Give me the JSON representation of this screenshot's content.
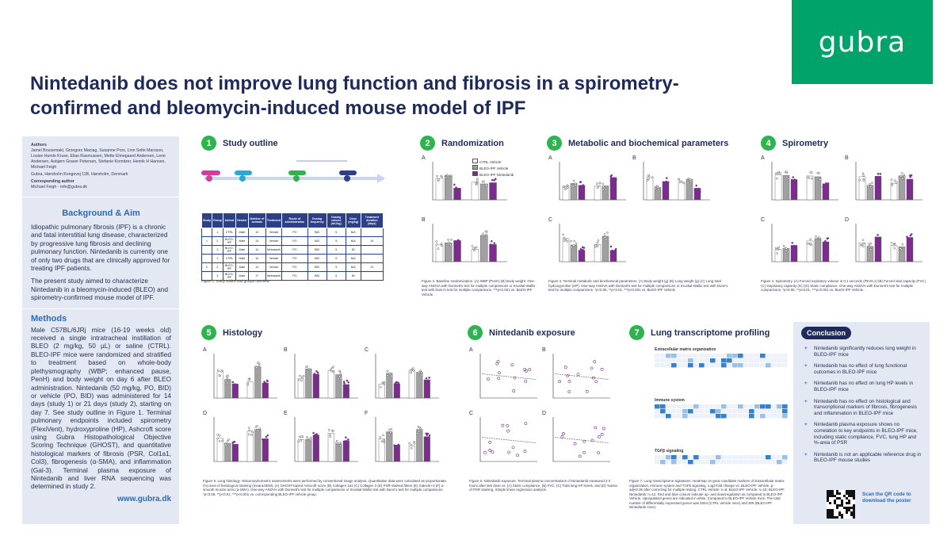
{
  "brand": {
    "logo_text": "gubra",
    "color": "#00a46a"
  },
  "title": {
    "line1": "Nintedanib does not improve lung function and fibrosis in a spirometry-",
    "line2": "confirmed and bleomycin-induced mouse model of IPF"
  },
  "sidebar": {
    "authors_heading": "Authors",
    "authors": "Jamel Bousemaki, Grzegorz Maciag, Susanne Pors, Linn Selte Marsson, Louise Humle Kruse, Elias Rasmussen, Mette Elmegaard Andersen, Lene Andersen, Asbjørn Graver Petersen, Stefanie Kornitzer, Henrik H Hansen, Michael Feigh",
    "address": "Gubra, Hørsholm Kongevej 11B, Hørsholm, Denmark",
    "corresponding_heading": "Corresponding author",
    "corresponding": "Michael Feigh - mfe@gubra.dk",
    "background_heading": "Background & Aim",
    "background_p1": "Idiopathic pulmonary fibrosis (IPF) is a chronic and fatal interstitial lung disease, characterized by progressive lung fibrosis and declining pulmonary function. Nintedanib is currently one of only two drugs that are clinically approved for treating IPF patients.",
    "background_p2": "The present study aimed to characterize Nintedanib in a bleomycin-induced (BLEO) and spirometry-confirmed mouse model of IPF.",
    "methods_heading": "Methods",
    "methods": "Male C57BL/6JRj mice (16-19 weeks old) received a single intratracheal instillation of BLEO (2 mg/kg, 50 µL) or saline (CTRL). BLEO-IPF mice were randomized and stratified to treatment based on whole-body plethysmography (WBP; enhanced pause, PenH) and body weight on day 6 after BLEO administration. Nintedanib (50 mg/kg, PO, BID) or vehicle (PO, BID) was administered for 14 days (study 1) or 21 days (study 2), starting on day 7. See study outline in Figure 1. Terminal pulmonary endpoints included spirometry (FlexiVent), hydroxyproline (HP), Ashcroft score using Gubra Histopathological Objective Scoring Technique (GHOST), and quantitative histological markers of fibrosis (PSR, Col1a1, Col3), fibrogenesis (α-SMA), and inflammation (Gal-3). Terminal plasma exposure of Nintedanib and liver RNA sequencing was determined in study 2.",
    "url": "www.gubra.dk"
  },
  "sections": {
    "s1": {
      "num": "1",
      "title": "Study outline"
    },
    "s2": {
      "num": "2",
      "title": "Randomization"
    },
    "s3": {
      "num": "3",
      "title": "Metabolic and biochemical parameters"
    },
    "s4": {
      "num": "4",
      "title": "Spirometry"
    },
    "s5": {
      "num": "5",
      "title": "Histology"
    },
    "s6": {
      "num": "6",
      "title": "Nintedanib exposure"
    },
    "s7": {
      "num": "7",
      "title": "Lung transcriptome profiling"
    }
  },
  "outline_table": {
    "headers": [
      "Study",
      "Group",
      "Animal",
      "Gender",
      "Number of animals",
      "Treatment",
      "Route of administration",
      "Dosing frequency",
      "Dosing volume (mL/kg)",
      "Dose (mg/kg)",
      "Treatment duration (days)"
    ],
    "rows": [
      [
        "",
        "1",
        "CTRL",
        "Male",
        "10",
        "Vehicle",
        "PO",
        "BID",
        "5",
        "N/A",
        ""
      ],
      [
        "1",
        "2",
        "BLEO-IPF",
        "Male",
        "14",
        "Vehicle",
        "PO",
        "BID",
        "5",
        "N/A",
        "14"
      ],
      [
        "",
        "3",
        "BLEO-IPF",
        "Male",
        "14",
        "Nintedanib",
        "PO",
        "BID",
        "5",
        "50",
        ""
      ],
      [
        "",
        "1",
        "CTRL",
        "Male",
        "10",
        "Vehicle",
        "PO",
        "BID",
        "5",
        "N/A",
        ""
      ],
      [
        "2",
        "2",
        "BLEO-IPF",
        "Male",
        "14",
        "Vehicle",
        "PO",
        "BID",
        "5",
        "N/A",
        "21"
      ],
      [
        "",
        "3",
        "BLEO-IPF",
        "Male",
        "17",
        "Nintedanib",
        "PO",
        "BID",
        "5",
        "50",
        ""
      ]
    ]
  },
  "captions": {
    "fig1": "Figure 1. Study outline and groups overview.",
    "fig2": "Figure 2. Baseline randomization. (A) WBP (PenH) (B) Body weight. One-way ANOVA with Dunnett's test for multiple comparisons or Kruskal-Wallis test with Dunn's test for multiple comparisons. ***p<0.001 vs. BLEO-IPF Vehicle.",
    "fig3": "Figure 3. Terminal metabolic and biochemical parameters. (A) Body weight (g) (B) Lung weight (g) (C) Lung total hydroxyproline (HP). One-way ANOVA with Dunnett's test for multiple comparisons or Kruskal-Wallis test with Dunn's test for multiple comparisons. *p<0.05, **p<0.01, ***p<0.001 vs. BLEO-IPF Vehicle.",
    "fig4": "Figure 4. Spirometry. (A) Forced expiratory volume in 0.1 seconds (FEV0.1) (B) Forced vital capacity (FVC) (C) Inspiratory capacity (IC) (D) Static compliance. One-way ANOVA with Dunnett's test for multiple comparisons. *p<0.05, **p<0.01, ***p<0.001 vs. BLEO-IPF Vehicle.",
    "fig5": "Figure 5. Lung histology. Histomorphometric assessments were performed by conventional image analysis. Quantitative data were calculated as proportionate (%) area of histological staining (mean±SEM). (A) GHOST-based Ashcroft score (B) Collagen 1a1 (C) Collagen 3 (D) PSR-stained fibers (E) Galectin-3 (F) α-smooth muscle actin (α-SMA). One-way ANOVA with Dunnett's test for multiple comparisons or Kruskal-Wallis test with Dunn's test for multiple comparisons. *p<0.05, **p<0.01, ***p<0.001 vs. corresponding BLEO-IPF vehicle group.",
    "fig6": "Figure 6. Nintedanib exposure. Terminal plasma concentrations of Nintedanib measured 2-3 hours after last dose vs. (A) Static compliance, (B) FVC, (C) Total lung HP levels, and (D) %area of PSR staining. Simple linear regression analysis.",
    "fig7": "Figure 7. Lung transcriptome signatures. Heatmap on gene candidate markers of Extracellular matrix organization, immune system and TGFb signaling. Log2-fold change vs. BLEO-IPF Vehicle. p-adj<0.05 after correcting for multiple testing. CTRL Vehicle: n=8; BLEO-IPF Vehicle: n=10; BLEO-IPF Nintedanib: n=12. Red and blue colours indicate up- and downregulation as compared to BLEO-IPF Vehicle. Upregulated genes are indicated in white. Compared to BLEO-IPF Vehicle mice. The total number of differentially expressed genes was 5344 (CTRL Vehicle mice) and 305 (BLEO-IPF Nintedanib mice)."
  },
  "legend": {
    "items": [
      "CTRL Vehicle",
      "BLEO-IPF Vehicle",
      "BLEO-IPF Nintedanib"
    ]
  },
  "colors": {
    "ctrl": "#ffffff",
    "bleo_vehicle": "#a0a0a0",
    "bleo_ninte": "#7b2d8e",
    "navy": "#1e2a5a",
    "green": "#2fb34f"
  },
  "panel_letters": {
    "s2": [
      "A",
      "B"
    ],
    "s3": [
      "A",
      "B",
      "C"
    ],
    "s4": [
      "A",
      "B",
      "C",
      "D"
    ],
    "s5": [
      "A",
      "B",
      "C",
      "D",
      "E",
      "F"
    ],
    "s6": [
      "A",
      "B",
      "C",
      "D"
    ]
  },
  "transcriptome_headings": [
    "Extracellular matrix organization",
    "Immune system",
    "TGFβ signaling"
  ],
  "conclusion": {
    "heading": "Conclusion",
    "items": [
      "Nintedanib significantly reduces lung weight in BLEO-IPF mice",
      "Nintedanib has no effect of lung functional outcomes in BLEO-IPF mice",
      "Nintedanib has no effect on lung HP levels in BLEO-IPF mice",
      "Nintedanib has no effect on histological and transcriptional markers of fibrosis, fibrogenesis and inflammation in BLEO-IPF mice",
      "Nintedanib plasma exposure shows no correlation to key endpoints in BLEO-IPF mice, including static compliance, FVC, lung HP and %-area of PSR",
      "Nintedanib is not an applicable reference drug in BLEO-IPF mouse studies"
    ],
    "qr_text": "Scan the QR code to download the poster"
  }
}
